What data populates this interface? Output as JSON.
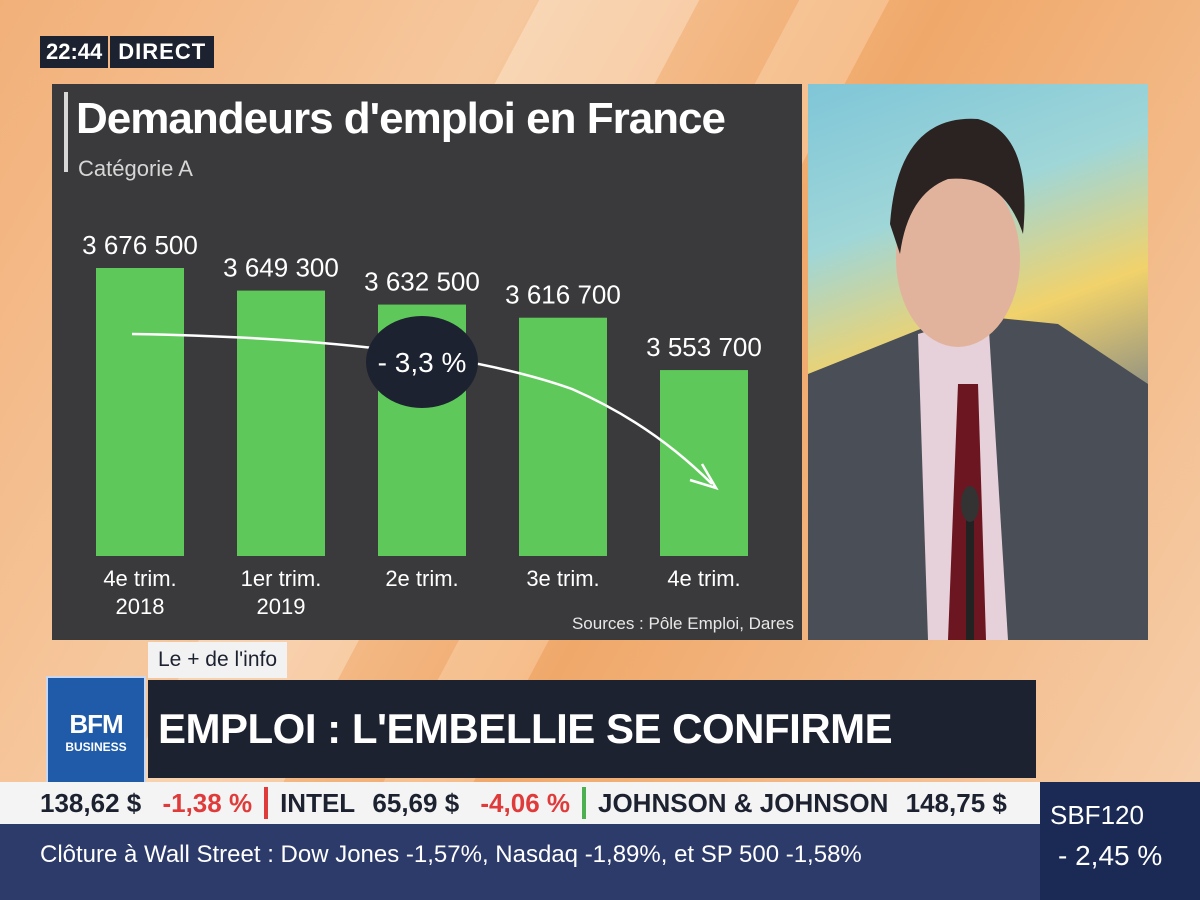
{
  "broadcast": {
    "time": "22:44",
    "live_label": "DIRECT"
  },
  "chart_data": {
    "type": "bar",
    "title": "Demandeurs d'emploi en France",
    "subtitle": "Catégorie A",
    "categories": [
      [
        "4e trim.",
        "2018"
      ],
      [
        "1er trim.",
        "2019"
      ],
      [
        "2e trim.",
        ""
      ],
      [
        "3e trim.",
        ""
      ],
      [
        "4e trim.",
        ""
      ]
    ],
    "values": [
      3676500,
      3649300,
      3632500,
      3616700,
      3553700
    ],
    "value_labels": [
      "3 676 500",
      "3 649 300",
      "3 632 500",
      "3 616 700",
      "3 553 700"
    ],
    "bar_color": "#5ec95a",
    "annotation": "- 3,3 %",
    "source": "Sources : Pôle Emploi, Dares"
  },
  "lower_third": {
    "tag": "Le + de l'info",
    "headline": "EMPLOI : L'EMBELLIE SE CONFIRME",
    "logo_line1": "BFM",
    "logo_line2": "BUSINESS"
  },
  "ticker": {
    "items": [
      {
        "name": "",
        "price": "138,62 $",
        "change": "-1,38 %"
      },
      {
        "name": "INTEL",
        "price": "65,69 $",
        "change": "-4,06 %"
      },
      {
        "name": "JOHNSON & JOHNSON",
        "price": "148,75 $",
        "change": ""
      }
    ],
    "crawl": "Clôture à Wall Street : Dow Jones -1,57%, Nasdaq -1,89%, et SP 500 -1,58%",
    "index_name": "SBF120",
    "index_change": "- 2,45 %",
    "separator_colors": [
      "#e03b3b",
      "#e03b3b",
      "#4caf50"
    ]
  }
}
